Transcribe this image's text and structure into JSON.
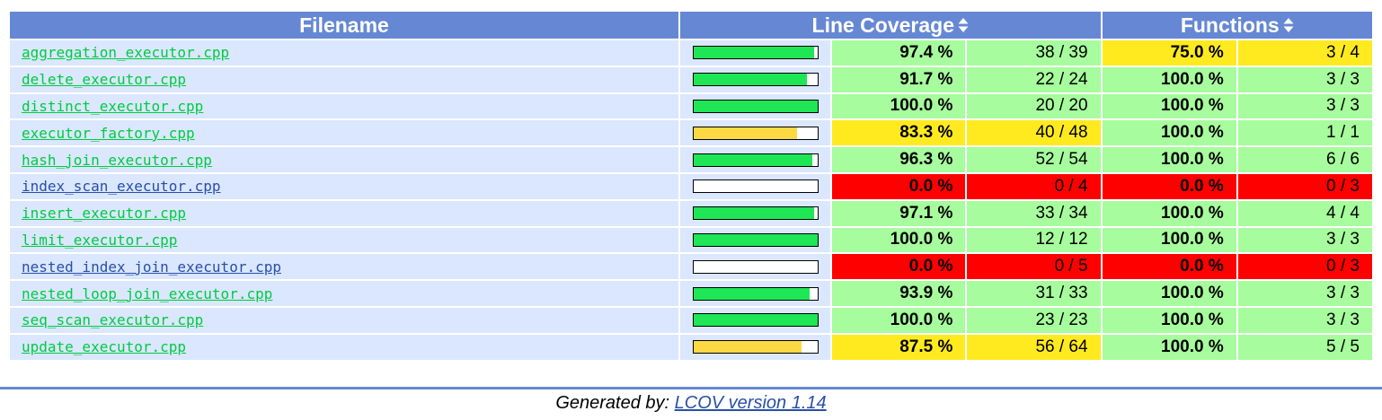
{
  "header": {
    "filename": "Filename",
    "line_coverage": "Line Coverage",
    "functions": "Functions"
  },
  "colors": {
    "header_bg": "#6688d4",
    "file_bg": "#dae7fe",
    "hi": "#a7fc9d",
    "med": "#ffea20",
    "lo": "#ff0000",
    "bar_hi": "#1fe655",
    "bar_med": "#fcd843",
    "link_hi": "#00cb40",
    "link_lo": "#284fa8"
  },
  "rows": [
    {
      "file": "aggregation_executor.cpp",
      "line_pct": "97.4 %",
      "line_hit": "38 / 39",
      "func_pct": "75.0 %",
      "func_hit": "3 / 4",
      "bar": 0.974,
      "line_level": "hi",
      "func_level": "med"
    },
    {
      "file": "delete_executor.cpp",
      "line_pct": "91.7 %",
      "line_hit": "22 / 24",
      "func_pct": "100.0 %",
      "func_hit": "3 / 3",
      "bar": 0.917,
      "line_level": "hi",
      "func_level": "hi"
    },
    {
      "file": "distinct_executor.cpp",
      "line_pct": "100.0 %",
      "line_hit": "20 / 20",
      "func_pct": "100.0 %",
      "func_hit": "3 / 3",
      "bar": 1.0,
      "line_level": "hi",
      "func_level": "hi"
    },
    {
      "file": "executor_factory.cpp",
      "line_pct": "83.3 %",
      "line_hit": "40 / 48",
      "func_pct": "100.0 %",
      "func_hit": "1 / 1",
      "bar": 0.833,
      "line_level": "med",
      "func_level": "hi"
    },
    {
      "file": "hash_join_executor.cpp",
      "line_pct": "96.3 %",
      "line_hit": "52 / 54",
      "func_pct": "100.0 %",
      "func_hit": "6 / 6",
      "bar": 0.963,
      "line_level": "hi",
      "func_level": "hi"
    },
    {
      "file": "index_scan_executor.cpp",
      "line_pct": "0.0 %",
      "line_hit": "0 / 4",
      "func_pct": "0.0 %",
      "func_hit": "0 / 3",
      "bar": 0.0,
      "line_level": "lo",
      "func_level": "lo"
    },
    {
      "file": "insert_executor.cpp",
      "line_pct": "97.1 %",
      "line_hit": "33 / 34",
      "func_pct": "100.0 %",
      "func_hit": "4 / 4",
      "bar": 0.971,
      "line_level": "hi",
      "func_level": "hi"
    },
    {
      "file": "limit_executor.cpp",
      "line_pct": "100.0 %",
      "line_hit": "12 / 12",
      "func_pct": "100.0 %",
      "func_hit": "3 / 3",
      "bar": 1.0,
      "line_level": "hi",
      "func_level": "hi"
    },
    {
      "file": "nested_index_join_executor.cpp",
      "line_pct": "0.0 %",
      "line_hit": "0 / 5",
      "func_pct": "0.0 %",
      "func_hit": "0 / 3",
      "bar": 0.0,
      "line_level": "lo",
      "func_level": "lo"
    },
    {
      "file": "nested_loop_join_executor.cpp",
      "line_pct": "93.9 %",
      "line_hit": "31 / 33",
      "func_pct": "100.0 %",
      "func_hit": "3 / 3",
      "bar": 0.939,
      "line_level": "hi",
      "func_level": "hi"
    },
    {
      "file": "seq_scan_executor.cpp",
      "line_pct": "100.0 %",
      "line_hit": "23 / 23",
      "func_pct": "100.0 %",
      "func_hit": "3 / 3",
      "bar": 1.0,
      "line_level": "hi",
      "func_level": "hi"
    },
    {
      "file": "update_executor.cpp",
      "line_pct": "87.5 %",
      "line_hit": "56 / 64",
      "func_pct": "100.0 %",
      "func_hit": "5 / 5",
      "bar": 0.875,
      "line_level": "med",
      "func_level": "hi"
    }
  ],
  "footer": {
    "generated_by": "Generated by:",
    "lcov_link": "LCOV version 1.14"
  }
}
